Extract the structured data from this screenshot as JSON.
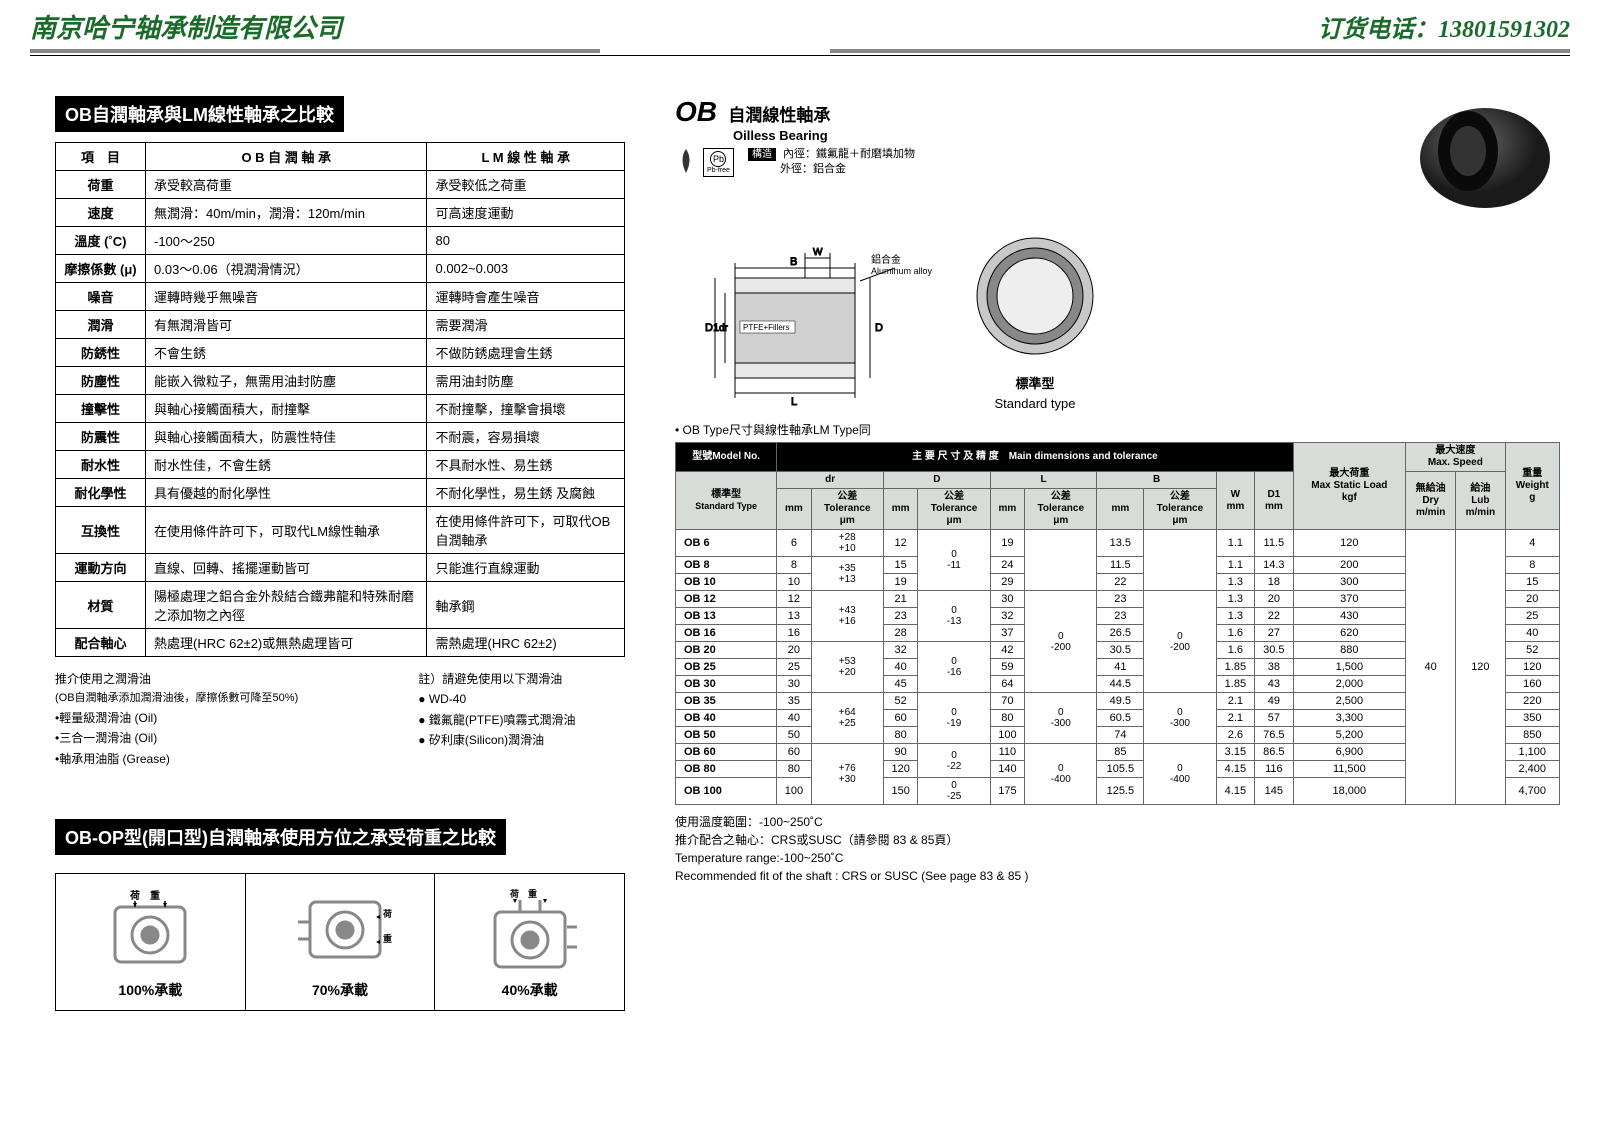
{
  "header": {
    "company": "南京哈宁轴承制造有限公司",
    "phone_label": "订货电话：13801591302"
  },
  "section1": {
    "title": "OB自潤軸承與LM線性軸承之比較",
    "columns": [
      "項　目",
      "O B 自 潤 軸 承",
      "L M 線 性 軸 承"
    ],
    "rows": [
      [
        "荷重",
        "承受較高荷重",
        "承受較低之荷重"
      ],
      [
        "速度",
        "無潤滑：40m/min，潤滑：120m/min",
        "可高速度運動"
      ],
      [
        "溫度 (˚C)",
        "-100〜250",
        "80"
      ],
      [
        "摩擦係數 (μ)",
        "0.03〜0.06（視潤滑情況）",
        "0.002~0.003"
      ],
      [
        "噪音",
        "運轉時幾乎無噪音",
        "運轉時會產生噪音"
      ],
      [
        "潤滑",
        "有無潤滑皆可",
        "需要潤滑"
      ],
      [
        "防銹性",
        "不會生銹",
        "不做防銹處理會生銹"
      ],
      [
        "防塵性",
        "能嵌入微粒子，無需用油封防塵",
        "需用油封防塵"
      ],
      [
        "撞擊性",
        "與軸心接觸面積大，耐撞擊",
        "不耐撞擊，撞擊會損壞"
      ],
      [
        "防震性",
        "與軸心接觸面積大，防震性特佳",
        "不耐震，容易損壞"
      ],
      [
        "耐水性",
        "耐水性佳，不會生銹",
        "不具耐水性、易生銹"
      ],
      [
        "耐化學性",
        "具有優越的耐化學性",
        "不耐化學性，易生銹 及腐蝕"
      ],
      [
        "互換性",
        "在使用條件許可下，可取代LM線性軸承",
        "在使用條件許可下，可取代OB自潤軸承"
      ],
      [
        "運動方向",
        "直線、回轉、搖擺運動皆可",
        "只能進行直線運動"
      ],
      [
        "材質",
        "陽極處理之鋁合金外殼結合鐵弗龍和特殊耐磨之添加物之內徑",
        "軸承鋼"
      ],
      [
        "配合軸心",
        "熱處理(HRC 62±2)或無熱處理皆可",
        "需熱處理(HRC 62±2)"
      ]
    ]
  },
  "notes1": {
    "left_title": "推介使用之潤滑油",
    "left_sub": "(OB自潤軸承添加潤滑油後，摩擦係數可降至50%)",
    "left_items": [
      "•輕量級潤滑油 (Oil)",
      "•三合一潤滑油 (Oil)",
      "•軸承用油脂 (Grease)"
    ],
    "right_title": "註）請避免使用以下潤滑油",
    "right_items": [
      "● WD-40",
      "● 鐵氟龍(PTFE)噴霧式潤滑油",
      "● 矽利康(Silicon)潤滑油"
    ]
  },
  "section2": {
    "title": "OB-OP型(開口型)自潤軸承使用方位之承受荷重之比較",
    "labels": [
      "100%承載",
      "70%承載",
      "40%承載"
    ]
  },
  "ob": {
    "code": "OB",
    "cn": "自潤線性軸承",
    "en": "Oilless Bearing",
    "struct_label": "構造",
    "struct_text1": "內徑：鐵氟龍＋耐磨填加物",
    "struct_text2": "外徑：鋁合金",
    "pb_label": "Pb-free",
    "mat1": "鋁合金",
    "mat1_en": "Aluminum alloy",
    "mat2": "PTFE+Fillers",
    "std_cn": "標準型",
    "std_en": "Standard type"
  },
  "dim": {
    "note": "• OB Type尺寸與線性軸承LM Type同",
    "h_model": "型號Model No.",
    "h_main": "主 要 尺 寸 及 精 度　Main dimensions and tolerance",
    "h_load": "最大荷重",
    "h_load_en": "Max Static Load",
    "h_load_u": "kgf",
    "h_speed": "最大速度",
    "h_speed_en": "Max. Speed",
    "h_speed_dry": "無給油\nDry\nm/min",
    "h_speed_lub": "給油\nLub\nm/min",
    "h_weight": "重量",
    "h_weight_en": "Weight",
    "h_weight_u": "g",
    "h_std": "標準型",
    "h_std_en": "Standard Type",
    "h_tol": "公差\nTolerance\nμm",
    "cols": [
      "dr",
      "D",
      "L",
      "B",
      "W",
      "D1"
    ],
    "rows": [
      {
        "m": "OB 6",
        "dr": 6,
        "D": 12,
        "L": 19,
        "B": 13.5,
        "W": 1.1,
        "D1": 11.5,
        "load": 120,
        "wt": 4
      },
      {
        "m": "OB 8",
        "dr": 8,
        "D": 15,
        "L": 24,
        "B": 11.5,
        "W": 1.1,
        "D1": 14.3,
        "load": 200,
        "wt": 8
      },
      {
        "m": "OB 10",
        "dr": 10,
        "D": 19,
        "L": 29,
        "B": 22,
        "W": 1.3,
        "D1": 18,
        "load": 300,
        "wt": 15
      },
      {
        "m": "OB 12",
        "dr": 12,
        "D": 21,
        "L": 30,
        "B": 23,
        "W": 1.3,
        "D1": 20,
        "load": 370,
        "wt": 20
      },
      {
        "m": "OB 13",
        "dr": 13,
        "D": 23,
        "L": 32,
        "B": 23,
        "W": 1.3,
        "D1": 22,
        "load": 430,
        "wt": 25
      },
      {
        "m": "OB 16",
        "dr": 16,
        "D": 28,
        "L": 37,
        "B": 26.5,
        "W": 1.6,
        "D1": 27,
        "load": 620,
        "wt": 40
      },
      {
        "m": "OB 20",
        "dr": 20,
        "D": 32,
        "L": 42,
        "B": 30.5,
        "W": 1.6,
        "D1": 30.5,
        "load": 880,
        "wt": 52
      },
      {
        "m": "OB 25",
        "dr": 25,
        "D": 40,
        "L": 59,
        "B": 41,
        "W": 1.85,
        "D1": 38,
        "load": "1,500",
        "wt": 120
      },
      {
        "m": "OB 30",
        "dr": 30,
        "D": 45,
        "L": 64,
        "B": 44.5,
        "W": 1.85,
        "D1": 43,
        "load": "2,000",
        "wt": 160
      },
      {
        "m": "OB 35",
        "dr": 35,
        "D": 52,
        "L": 70,
        "B": 49.5,
        "W": 2.1,
        "D1": 49,
        "load": "2,500",
        "wt": 220
      },
      {
        "m": "OB 40",
        "dr": 40,
        "D": 60,
        "L": 80,
        "B": 60.5,
        "W": 2.1,
        "D1": 57,
        "load": "3,300",
        "wt": 350
      },
      {
        "m": "OB 50",
        "dr": 50,
        "D": 80,
        "L": 100,
        "B": 74,
        "W": 2.6,
        "D1": 76.5,
        "load": "5,200",
        "wt": 850
      },
      {
        "m": "OB 60",
        "dr": 60,
        "D": 90,
        "L": 110,
        "B": 85,
        "W": 3.15,
        "D1": 86.5,
        "load": "6,900",
        "wt": "1,100"
      },
      {
        "m": "OB 80",
        "dr": 80,
        "D": 120,
        "L": 140,
        "B": 105.5,
        "W": 4.15,
        "D1": 116,
        "load": "11,500",
        "wt": "2,400"
      },
      {
        "m": "OB 100",
        "dr": 100,
        "D": 150,
        "L": 175,
        "B": 125.5,
        "W": 4.15,
        "D1": 145,
        "load": "18,000",
        "wt": "4,700"
      }
    ],
    "tol_dr": [
      "+28\n+10",
      "+35\n+13",
      "+43\n+16",
      "+53\n+20",
      "+64\n+25",
      "+76\n+30"
    ],
    "tol_D": [
      "0\n-11",
      "0\n-13",
      "0\n-16",
      "0\n-19",
      "0\n-22",
      "0\n-25"
    ],
    "tol_L": [
      "",
      "0\n-200",
      "0\n-300",
      "0\n-400"
    ],
    "tol_B": [
      "",
      "0\n-200",
      "0\n-300",
      "0\n-400"
    ],
    "speed_dry": 40,
    "speed_lub": 120
  },
  "foot": {
    "l1": "使用溫度範圍：-100~250˚C",
    "l2": "推介配合之軸心：CRS或SUSC（請參閱 83 & 85頁）",
    "l3": "Temperature range:-100~250˚C",
    "l4": "Recommended fit of the shaft : CRS or SUSC (See page 83 & 85 )"
  }
}
